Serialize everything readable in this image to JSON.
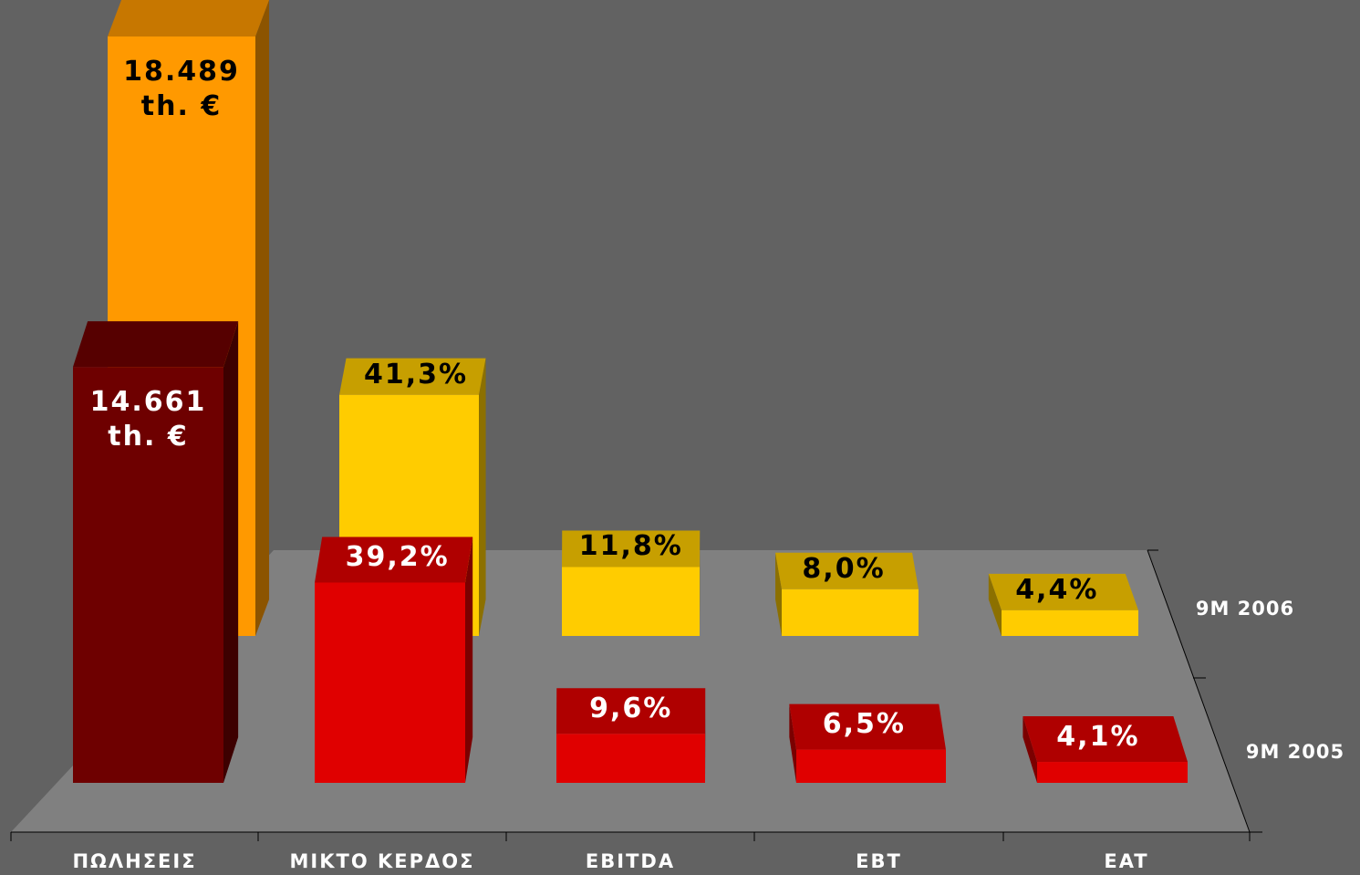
{
  "chart_data": {
    "type": "bar3d",
    "categories": [
      "ΠΩΛΗΣΕΙΣ",
      "ΜΙΚΤΟ ΚΕΡΔΟΣ",
      "EBITDA",
      "EBT",
      "EAT"
    ],
    "series": [
      {
        "name": "9M 2005",
        "colors": [
          "#6e0000",
          "#e00000",
          "#e00000",
          "#e00000",
          "#e00000"
        ],
        "values": [
          14661,
          39.2,
          9.6,
          6.5,
          4.1
        ],
        "value_labels": [
          "14.661 th. €",
          "39,2%",
          "9,6%",
          "6,5%",
          "4,1%"
        ]
      },
      {
        "name": "9M 2006",
        "colors": [
          "#ff9900",
          "#ffcc00",
          "#ffcc00",
          "#ffcc00",
          "#ffcc00"
        ],
        "values": [
          18489,
          41.3,
          11.8,
          8.0,
          4.4
        ],
        "value_labels": [
          "18.489 th. €",
          "41,3%",
          "11,8%",
          "8,0%",
          "4,4%"
        ]
      }
    ]
  }
}
